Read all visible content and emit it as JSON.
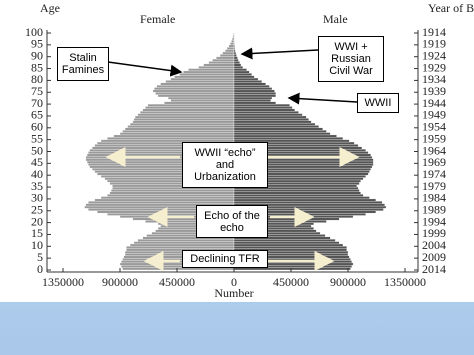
{
  "chart_data": {
    "type": "pyramid",
    "y_label": "Age",
    "y2_label": "Year of Birth",
    "x_label": "Number",
    "ages": [
      0,
      1,
      2,
      3,
      4,
      5,
      6,
      7,
      8,
      9,
      10,
      11,
      12,
      13,
      14,
      15,
      16,
      17,
      18,
      19,
      20,
      21,
      22,
      23,
      24,
      25,
      26,
      27,
      28,
      29,
      30,
      31,
      32,
      33,
      34,
      35,
      36,
      37,
      38,
      39,
      40,
      41,
      42,
      43,
      44,
      45,
      46,
      47,
      48,
      49,
      50,
      51,
      52,
      53,
      54,
      55,
      56,
      57,
      58,
      59,
      60,
      61,
      62,
      63,
      64,
      65,
      66,
      67,
      68,
      69,
      70,
      71,
      72,
      73,
      74,
      75,
      76,
      77,
      78,
      79,
      80,
      81,
      82,
      83,
      84,
      85,
      86,
      87,
      88,
      89,
      90,
      91,
      92,
      93,
      94,
      95,
      96,
      97,
      98,
      99
    ],
    "series": [
      {
        "name": "Female",
        "color": "#9a9a9a",
        "side": "left",
        "values": [
          880000,
          890000,
          900000,
          890000,
          880000,
          870000,
          860000,
          860000,
          850000,
          850000,
          820000,
          790000,
          760000,
          720000,
          690000,
          650000,
          620000,
          600000,
          580000,
          600000,
          700000,
          800000,
          900000,
          1000000,
          1080000,
          1150000,
          1180000,
          1170000,
          1150000,
          1100000,
          1050000,
          1000000,
          980000,
          970000,
          960000,
          960000,
          980000,
          1000000,
          1020000,
          1050000,
          1080000,
          1100000,
          1120000,
          1140000,
          1150000,
          1160000,
          1170000,
          1170000,
          1160000,
          1150000,
          1140000,
          1120000,
          1100000,
          1080000,
          1050000,
          1000000,
          950000,
          900000,
          880000,
          860000,
          840000,
          820000,
          800000,
          790000,
          780000,
          760000,
          740000,
          720000,
          700000,
          680000,
          550000,
          500000,
          520000,
          600000,
          620000,
          640000,
          630000,
          610000,
          580000,
          540000,
          500000,
          470000,
          430000,
          400000,
          360000,
          280000,
          240000,
          200000,
          170000,
          140000,
          110000,
          90000,
          70000,
          55000,
          40000,
          30000,
          20000,
          14000,
          9000,
          6000
        ]
      },
      {
        "name": "Male",
        "color": "#555555",
        "side": "right",
        "values": [
          920000,
          930000,
          940000,
          930000,
          920000,
          910000,
          900000,
          900000,
          890000,
          890000,
          860000,
          830000,
          800000,
          760000,
          720000,
          680000,
          650000,
          630000,
          610000,
          630000,
          730000,
          830000,
          940000,
          1040000,
          1120000,
          1180000,
          1200000,
          1190000,
          1170000,
          1120000,
          1070000,
          1020000,
          1000000,
          990000,
          980000,
          970000,
          990000,
          1000000,
          1020000,
          1040000,
          1060000,
          1070000,
          1080000,
          1090000,
          1100000,
          1100000,
          1100000,
          1090000,
          1080000,
          1060000,
          1040000,
          1010000,
          980000,
          950000,
          910000,
          860000,
          810000,
          760000,
          730000,
          700000,
          670000,
          640000,
          610000,
          590000,
          570000,
          540000,
          510000,
          480000,
          460000,
          440000,
          330000,
          290000,
          300000,
          330000,
          330000,
          320000,
          300000,
          280000,
          250000,
          220000,
          190000,
          160000,
          140000,
          120000,
          100000,
          70000,
          55000,
          45000,
          35000,
          28000,
          20000,
          15000,
          10000,
          7000,
          5000,
          3000,
          2000,
          1000,
          1000,
          1000
        ]
      }
    ],
    "ylim": [
      0,
      100
    ],
    "yticks": [
      0,
      5,
      10,
      15,
      20,
      25,
      30,
      35,
      40,
      45,
      50,
      55,
      60,
      65,
      70,
      75,
      80,
      85,
      90,
      95,
      100
    ],
    "y2lim": [
      2014,
      1914
    ],
    "y2ticks": [
      2014,
      2009,
      2004,
      1999,
      1994,
      1989,
      1984,
      1979,
      1974,
      1969,
      1964,
      1959,
      1954,
      1949,
      1944,
      1939,
      1934,
      1929,
      1924,
      1919,
      1914
    ],
    "xlim": [
      -1350000,
      1350000
    ],
    "xticks": [
      {
        "value": -1350000,
        "label": "1350000"
      },
      {
        "value": -900000,
        "label": "900000"
      },
      {
        "value": -450000,
        "label": "450000"
      },
      0,
      450000,
      900000,
      1350000
    ],
    "annotations": [
      "Stalin Famines",
      "WWI + Russian Civil War",
      "WWII",
      "WWII “echo” and Urbanization",
      "Echo of the echo",
      "Declining TFR"
    ]
  }
}
